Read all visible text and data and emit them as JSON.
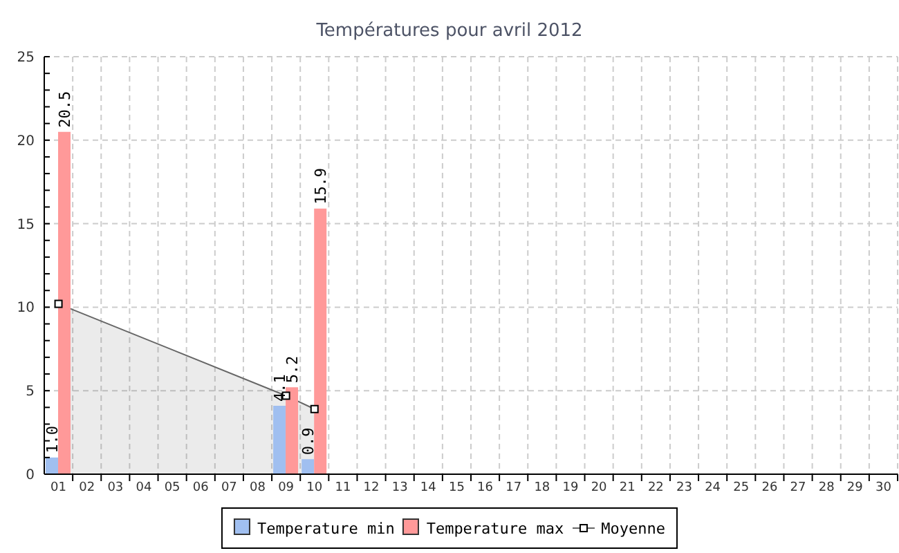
{
  "chart_data": {
    "type": "bar",
    "title": "Températures pour avril 2012",
    "categories": [
      "01",
      "02",
      "03",
      "04",
      "05",
      "06",
      "07",
      "08",
      "09",
      "10",
      "11",
      "12",
      "13",
      "14",
      "15",
      "16",
      "17",
      "18",
      "19",
      "20",
      "21",
      "22",
      "23",
      "24",
      "25",
      "26",
      "27",
      "28",
      "29",
      "30"
    ],
    "series": [
      {
        "name": "Temperature min",
        "color": "#a0bff0",
        "values": [
          1.0,
          null,
          null,
          null,
          null,
          null,
          null,
          null,
          4.1,
          0.9,
          null,
          null,
          null,
          null,
          null,
          null,
          null,
          null,
          null,
          null,
          null,
          null,
          null,
          null,
          null,
          null,
          null,
          null,
          null,
          null
        ],
        "value_labels": [
          "1.0",
          null,
          null,
          null,
          null,
          null,
          null,
          null,
          "4.1",
          "0.9",
          null,
          null,
          null,
          null,
          null,
          null,
          null,
          null,
          null,
          null,
          null,
          null,
          null,
          null,
          null,
          null,
          null,
          null,
          null,
          null
        ]
      },
      {
        "name": "Temperature max",
        "color": "#ff9999",
        "values": [
          20.5,
          null,
          null,
          null,
          null,
          null,
          null,
          null,
          5.2,
          15.9,
          null,
          null,
          null,
          null,
          null,
          null,
          null,
          null,
          null,
          null,
          null,
          null,
          null,
          null,
          null,
          null,
          null,
          null,
          null,
          null
        ],
        "value_labels": [
          "20.5",
          null,
          null,
          null,
          null,
          null,
          null,
          null,
          "5.2",
          "15.9",
          null,
          null,
          null,
          null,
          null,
          null,
          null,
          null,
          null,
          null,
          null,
          null,
          null,
          null,
          null,
          null,
          null,
          null,
          null,
          null
        ]
      },
      {
        "name": "Moyenne",
        "type": "area",
        "color": "#666666",
        "marker": "square",
        "values": [
          10.2,
          null,
          null,
          null,
          null,
          null,
          null,
          null,
          4.7,
          3.9,
          null,
          null,
          null,
          null,
          null,
          null,
          null,
          null,
          null,
          null,
          null,
          null,
          null,
          null,
          null,
          null,
          null,
          null,
          null,
          null
        ]
      }
    ],
    "ylim": [
      0,
      25
    ],
    "yticks": [
      0,
      {
        "value": 1,
        "label": null
      },
      {
        "value": 2,
        "label": null
      },
      {
        "value": 3,
        "label": null
      },
      {
        "value": 4,
        "label": null
      },
      5,
      {
        "value": 6,
        "label": null
      },
      {
        "value": 7,
        "label": null
      },
      {
        "value": 8,
        "label": null
      },
      {
        "value": 9,
        "label": null
      },
      10,
      {
        "value": 11,
        "label": null
      },
      {
        "value": 12,
        "label": null
      },
      {
        "value": 13,
        "label": null
      },
      {
        "value": 14,
        "label": null
      },
      15,
      {
        "value": 16,
        "label": null
      },
      {
        "value": 17,
        "label": null
      },
      {
        "value": 18,
        "label": null
      },
      {
        "value": 19,
        "label": null
      },
      20,
      {
        "value": 21,
        "label": null
      },
      {
        "value": 22,
        "label": null
      },
      {
        "value": 23,
        "label": null
      },
      {
        "value": 24,
        "label": null
      },
      25
    ],
    "grid": true,
    "legend": "bottom"
  }
}
